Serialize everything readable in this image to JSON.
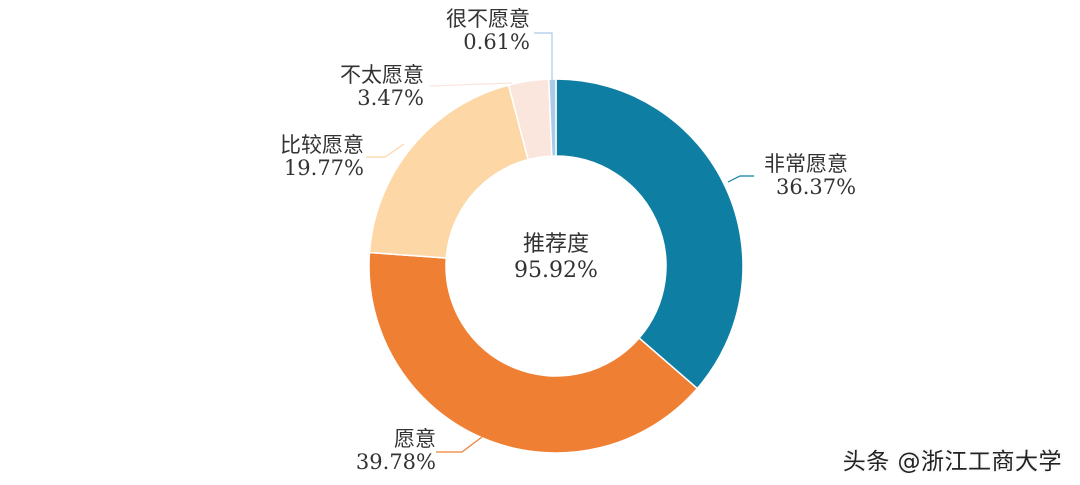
{
  "chart_data": {
    "type": "pie",
    "subtype": "donut",
    "title": "",
    "center_label": {
      "name": "推荐度",
      "value": "95.92%"
    },
    "categories": [
      "非常愿意",
      "愿意",
      "比较愿意",
      "不太愿意",
      "很不愿意"
    ],
    "values": [
      36.37,
      39.78,
      19.77,
      3.47,
      0.61
    ],
    "labels": [
      "36.37%",
      "39.78%",
      "19.77%",
      "3.47%",
      "0.61%"
    ],
    "colors": [
      "#0e7fa2",
      "#ee7f33",
      "#fdd7a5",
      "#fbe6dd",
      "#a9cbe9"
    ],
    "start_angle_deg": 0,
    "direction": "clockwise",
    "legend": "none",
    "data_labels": "outside with leader lines"
  },
  "watermark": "头条 @浙江工商大学"
}
